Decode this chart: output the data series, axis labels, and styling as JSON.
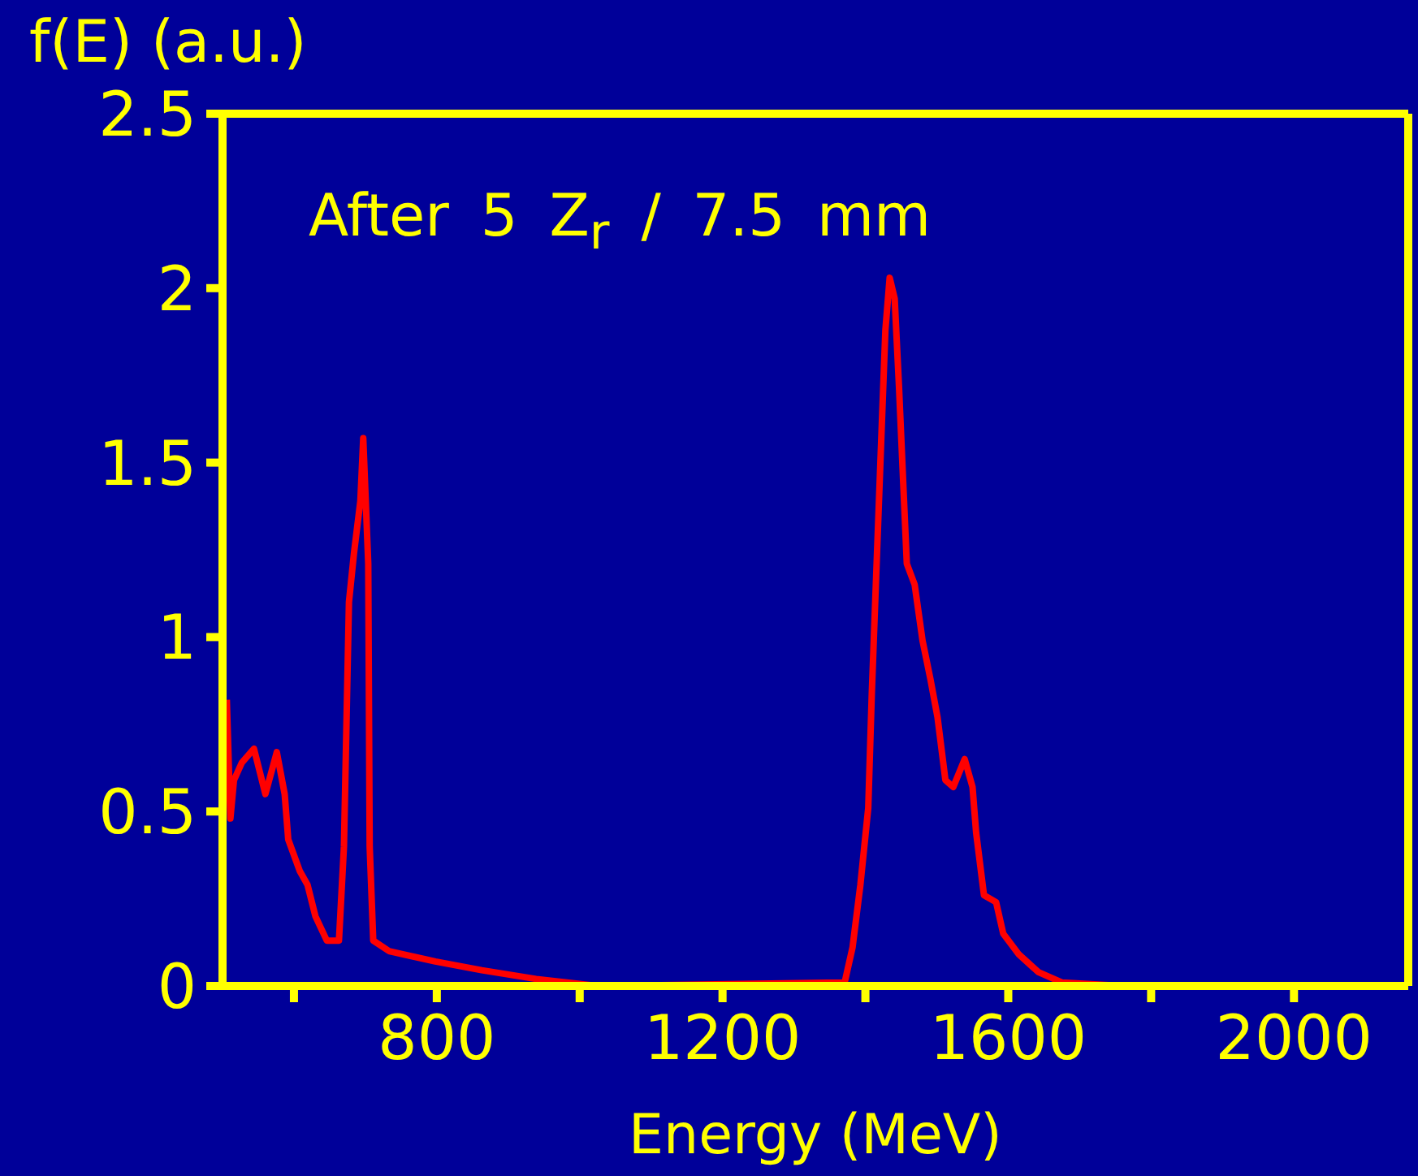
{
  "chart_data": {
    "type": "line",
    "xlabel": "Energy (MeV)",
    "ylabel": "f(E) (a.u.)",
    "annotations": [
      "After 5 Z$_{r}$ / 7.5 mm"
    ],
    "x": [
      506,
      511,
      516,
      527,
      544,
      560,
      576,
      587,
      592,
      608,
      619,
      630,
      646,
      663,
      670,
      677,
      684,
      693,
      697,
      704,
      706,
      711,
      733,
      798,
      863,
      939,
      1025,
      1371,
      1382,
      1393,
      1404,
      1409,
      1415,
      1423,
      1428,
      1434,
      1441,
      1447,
      1453,
      1458,
      1469,
      1480,
      1491,
      1501,
      1512,
      1523,
      1539,
      1550,
      1555,
      1566,
      1583,
      1593,
      1615,
      1642,
      1675,
      1761
    ],
    "series": [
      {
        "color": "#ff0000",
        "values": [
          0.82,
          0.48,
          0.59,
          0.64,
          0.68,
          0.55,
          0.67,
          0.55,
          0.42,
          0.33,
          0.29,
          0.2,
          0.13,
          0.13,
          0.4,
          1.1,
          1.24,
          1.39,
          1.57,
          1.21,
          0.4,
          0.13,
          0.1,
          0.07,
          0.045,
          0.02,
          0,
          0.01,
          0.11,
          0.29,
          0.51,
          0.84,
          1.17,
          1.61,
          1.88,
          2.03,
          1.97,
          1.72,
          1.44,
          1.21,
          1.15,
          0.99,
          0.88,
          0.77,
          0.59,
          0.57,
          0.65,
          0.57,
          0.44,
          0.26,
          0.24,
          0.15,
          0.09,
          0.04,
          0.01,
          0
        ]
      }
    ],
    "xlim": [
      500,
      2160
    ],
    "xticks": [
      {
        "value": 600,
        "label": null
      },
      800,
      {
        "value": 1000,
        "label": null
      },
      1200,
      {
        "value": 1400,
        "label": null
      },
      1600,
      {
        "value": 1800,
        "label": null
      },
      2000
    ],
    "ylim": [
      0,
      2.5
    ],
    "yticks": [
      0,
      0.5,
      1,
      1.5,
      2,
      2.5
    ],
    "marker": "none",
    "line_style": "solid"
  }
}
